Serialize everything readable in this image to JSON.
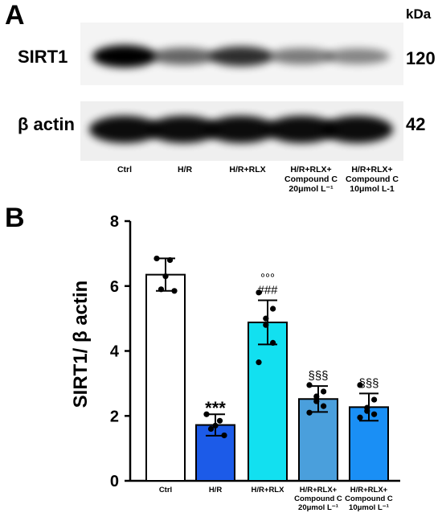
{
  "panel_a": {
    "letter": "A",
    "unit": "kDa",
    "rows": [
      {
        "label": "SIRT1",
        "mw": "120"
      },
      {
        "label": "β actin",
        "mw": "42"
      }
    ],
    "lanes": [
      [
        "Ctrl"
      ],
      [
        "H/R"
      ],
      [
        "H/R+RLX"
      ],
      [
        "H/R+RLX+",
        "Compound C",
        "20μmol L⁻¹"
      ],
      [
        "H/R+RLX+",
        "Compound C",
        "10μmol L-1"
      ]
    ],
    "band_intensity": {
      "sirt1": [
        1.0,
        0.45,
        0.72,
        0.35,
        0.3
      ],
      "beta_actin": [
        1.0,
        1.0,
        1.0,
        1.0,
        1.0
      ]
    }
  },
  "panel_b": {
    "letter": "B"
  },
  "chart_data": {
    "type": "bar",
    "categories": [
      [
        "Ctrl"
      ],
      [
        "H/R"
      ],
      [
        "H/R+RLX"
      ],
      [
        "H/R+RLX+",
        "Compound C",
        "20μmol L⁻¹"
      ],
      [
        "H/R+RLX+",
        "Compound C",
        "10μmol L⁻¹"
      ]
    ],
    "values": [
      6.35,
      1.72,
      4.88,
      2.52,
      2.27
    ],
    "errors": [
      0.5,
      0.33,
      0.68,
      0.4,
      0.42
    ],
    "points": [
      [
        6.85,
        6.8,
        6.3,
        5.9,
        5.85
      ],
      [
        2.05,
        1.85,
        1.7,
        1.6,
        1.4
      ],
      [
        5.8,
        5.3,
        5.0,
        4.8,
        4.25,
        3.65
      ],
      [
        2.95,
        2.75,
        2.6,
        2.45,
        2.3,
        2.1
      ],
      [
        2.95,
        2.5,
        2.25,
        2.15,
        2.05,
        1.95
      ]
    ],
    "colors": [
      "#ffffff",
      "#1c5be8",
      "#12e0f0",
      "#4a9fdc",
      "#1a8ff5"
    ],
    "significance": [
      [
        ""
      ],
      [
        "***"
      ],
      [
        "°°°",
        "###"
      ],
      [
        "§§§"
      ],
      [
        "§§§"
      ]
    ],
    "ylabel": "SIRT1/ β actin",
    "ylim": [
      0,
      8
    ],
    "yticks": [
      "0",
      "2",
      "4",
      "6",
      "8"
    ],
    "grid": false
  }
}
